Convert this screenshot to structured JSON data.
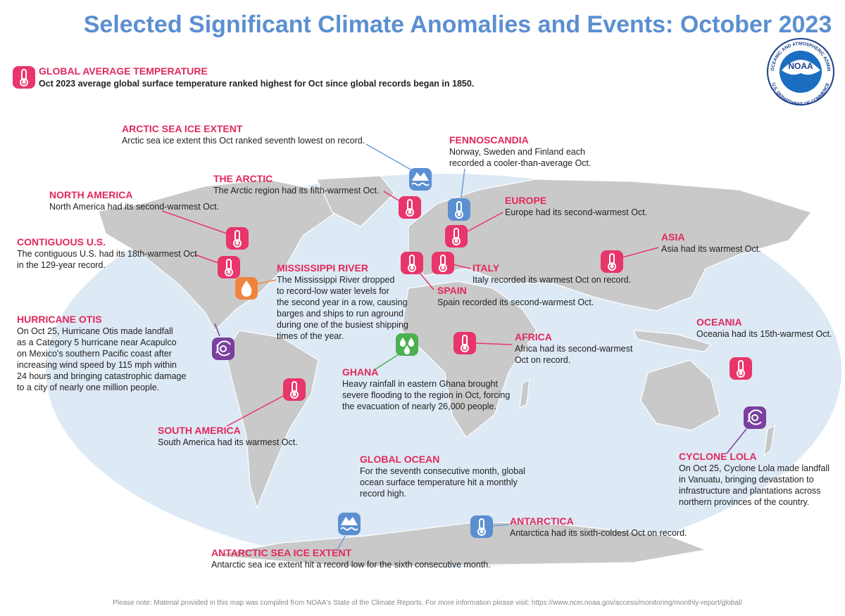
{
  "title": "Selected Significant Climate Anomalies and Events: October 2023",
  "global": {
    "title": "GLOBAL AVERAGE TEMPERATURE",
    "text": "Oct 2023 average global surface temperature ranked highest for Oct since global records began in 1850."
  },
  "logo": {
    "name": "NOAA",
    "ring_top": "NATIONAL OCEANIC AND ATMOSPHERIC ADMINISTRATION",
    "ring_bottom": "U.S. DEPARTMENT OF COMMERCE"
  },
  "events": [
    {
      "title": "ARCTIC SEA ICE EXTENT",
      "lines": [
        "Arctic sea ice extent this Oct ranked seventh lowest on record."
      ]
    },
    {
      "title": "FENNOSCANDIA",
      "lines": [
        "Norway, Sweden and Finland each",
        "recorded a cooler-than-average Oct."
      ]
    },
    {
      "title": "THE ARCTIC",
      "lines": [
        "The Arctic region had its fifth-warmest Oct."
      ]
    },
    {
      "title": "NORTH AMERICA",
      "lines": [
        "North America had its second-warmest Oct."
      ]
    },
    {
      "title": "CONTIGUOUS U.S.",
      "lines": [
        "The contiguous U.S. had its 18th-warmest Oct",
        "in the 129-year record."
      ]
    },
    {
      "title": "MISSISSIPPI RIVER",
      "lines": [
        "The Mississippi River dropped",
        "to record-low water levels for",
        "the second year in a row, causing",
        "barges and ships to run aground",
        "during one of the busiest shipping",
        "times of the year."
      ]
    },
    {
      "title": "HURRICANE OTIS",
      "lines": [
        "On Oct 25, Hurricane Otis made landfall",
        "as a Category 5 hurricane near Acapulco",
        "on Mexico's southern Pacific coast after",
        "increasing wind speed by 115 mph within",
        "24 hours and bringing catastrophic damage",
        "to a city of nearly one million people."
      ]
    },
    {
      "title": "SOUTH AMERICA",
      "lines": [
        "South America had its warmest Oct."
      ]
    },
    {
      "title": "GHANA",
      "lines": [
        "Heavy rainfall in eastern Ghana brought",
        "severe flooding to the region in Oct, forcing",
        "the evacuation of nearly 26,000 people."
      ]
    },
    {
      "title": "EUROPE",
      "lines": [
        "Europe had its second-warmest Oct."
      ]
    },
    {
      "title": "ITALY",
      "lines": [
        "Italy recorded its warmest Oct on record."
      ]
    },
    {
      "title": "SPAIN",
      "lines": [
        "Spain recorded its second-warmest Oct."
      ]
    },
    {
      "title": "ASIA",
      "lines": [
        "Asia had its warmest Oct."
      ]
    },
    {
      "title": "AFRICA",
      "lines": [
        "Africa had its second-warmest",
        "Oct on record."
      ]
    },
    {
      "title": "OCEANIA",
      "lines": [
        "Oceania had its 15th-warmest Oct."
      ]
    },
    {
      "title": "CYCLONE LOLA",
      "lines": [
        "On Oct 25, Cyclone Lola made landfall",
        "in Vanuatu, bringing devastation to",
        "infrastructure and plantations across",
        "northern provinces of the country."
      ]
    },
    {
      "title": "GLOBAL OCEAN",
      "lines": [
        "For the seventh consecutive month, global",
        "ocean surface temperature hit a monthly",
        "record high."
      ]
    },
    {
      "title": "ANTARCTICA",
      "lines": [
        "Antarctica had its sixth-coldest Oct on record."
      ]
    },
    {
      "title": "ANTARCTIC SEA ICE EXTENT",
      "lines": [
        "Antarctic sea ice extent hit a record low for the sixth consecutive month."
      ]
    }
  ],
  "footer": "Please note: Material provided in this map was compiled from NOAA's State of the Climate Reports. For more information please visit: https://www.ncei.noaa.gov/access/monitoring/monthly-report/global/"
}
